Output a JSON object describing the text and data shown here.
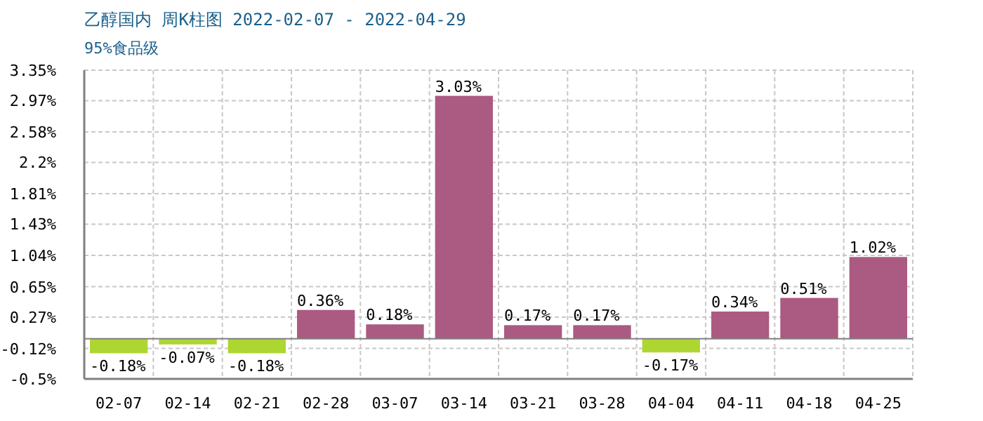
{
  "chart_data": {
    "type": "bar",
    "title": "乙醇国内 周K柱图 2022-02-07 - 2022-04-29",
    "subtitle": "95%食品级",
    "categories": [
      "02-07",
      "02-14",
      "02-21",
      "02-28",
      "03-07",
      "03-14",
      "03-21",
      "03-28",
      "04-04",
      "04-11",
      "04-18",
      "04-25"
    ],
    "values": [
      -0.18,
      -0.07,
      -0.18,
      0.36,
      0.18,
      3.03,
      0.17,
      0.17,
      -0.17,
      0.34,
      0.51,
      1.02
    ],
    "colors": [
      "#add631",
      "#add631",
      "#add631",
      "#ab5a82",
      "#ab5a82",
      "#ab5a82",
      "#ab5a82",
      "#ab5a82",
      "#add631",
      "#ab5a82",
      "#ab5a82",
      "#ab5a82"
    ],
    "value_labels": [
      "-0.18%",
      "-0.07%",
      "-0.18%",
      "0.36%",
      "0.18%",
      "3.03%",
      "0.17%",
      "0.17%",
      "-0.17%",
      "0.34%",
      "0.51%",
      "1.02%"
    ],
    "ylim": [
      -0.5,
      3.35
    ],
    "yticks": [
      {
        "value": 3.35,
        "label": "3.35%"
      },
      {
        "value": 2.97,
        "label": "2.97%"
      },
      {
        "value": 2.58,
        "label": "2.58%"
      },
      {
        "value": 2.2,
        "label": "2.2%"
      },
      {
        "value": 1.81,
        "label": "1.81%"
      },
      {
        "value": 1.43,
        "label": "1.43%"
      },
      {
        "value": 1.04,
        "label": "1.04%"
      },
      {
        "value": 0.65,
        "label": "0.65%"
      },
      {
        "value": 0.27,
        "label": "0.27%"
      },
      {
        "value": -0.12,
        "label": "-0.12%"
      },
      {
        "value": -0.5,
        "label": "-0.5%"
      }
    ],
    "grid": true
  }
}
